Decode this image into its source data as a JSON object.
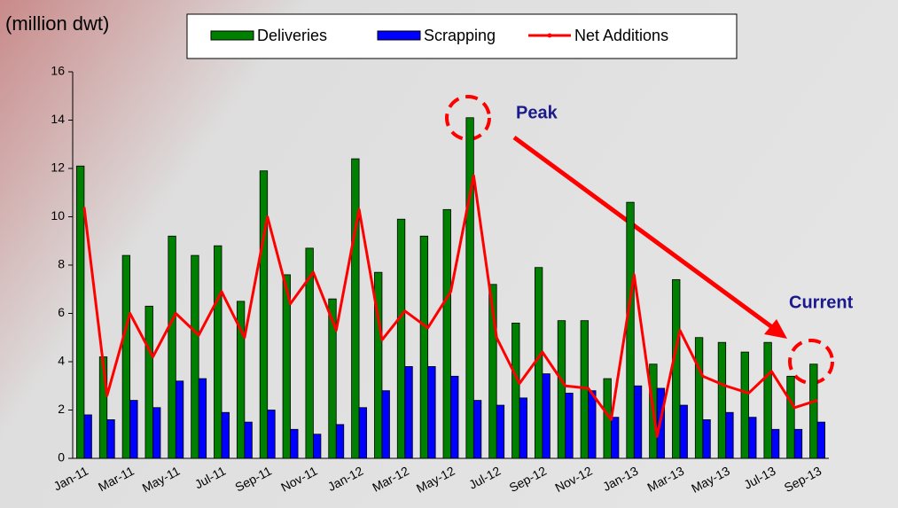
{
  "chart_data": {
    "type": "bar_line",
    "unit_label": "(million dwt)",
    "annotations": [
      "Peak",
      "Current"
    ],
    "categories": [
      "Jan-11",
      null,
      "Mar-11",
      null,
      "May-11",
      null,
      "Jul-11",
      null,
      "Sep-11",
      null,
      "Nov-11",
      null,
      "Jan-12",
      null,
      "Mar-12",
      null,
      "May-12",
      null,
      "Jul-12",
      null,
      "Sep-12",
      null,
      "Nov-12",
      null,
      "Jan-13",
      null,
      "Mar-13",
      null,
      "May-13",
      null,
      "Jul-13",
      null,
      "Sep-13"
    ],
    "series": [
      {
        "name": "Deliveries",
        "type": "bar",
        "color": "#008000",
        "values": [
          12.1,
          4.2,
          8.4,
          6.3,
          9.2,
          8.4,
          8.8,
          6.5,
          11.9,
          7.6,
          8.7,
          6.6,
          12.4,
          7.7,
          9.9,
          9.2,
          10.3,
          14.1,
          7.2,
          5.6,
          7.9,
          5.7,
          5.7,
          3.3,
          10.6,
          3.9,
          7.4,
          5.0,
          4.8,
          4.4,
          4.8,
          3.4,
          3.9
        ]
      },
      {
        "name": "Scrapping",
        "type": "bar",
        "color": "#0000ff",
        "values": [
          1.8,
          1.6,
          2.4,
          2.1,
          3.2,
          3.3,
          1.9,
          1.5,
          2.0,
          1.2,
          1.0,
          1.4,
          2.1,
          2.8,
          3.8,
          3.8,
          3.4,
          2.4,
          2.2,
          2.5,
          3.5,
          2.7,
          2.8,
          1.7,
          3.0,
          2.9,
          2.2,
          1.6,
          1.9,
          1.7,
          1.2,
          1.2,
          1.5
        ]
      },
      {
        "name": "Net Additions",
        "type": "line",
        "color": "#ff0000",
        "values": [
          10.4,
          2.6,
          6.0,
          4.2,
          6.0,
          5.1,
          6.9,
          5.0,
          10.0,
          6.4,
          7.7,
          5.3,
          10.3,
          4.9,
          6.1,
          5.4,
          6.9,
          11.7,
          5.0,
          3.1,
          4.4,
          3.0,
          2.9,
          1.6,
          7.6,
          0.9,
          5.3,
          3.4,
          3.0,
          2.7,
          3.6,
          2.1,
          2.4
        ]
      }
    ],
    "ylim": [
      0,
      16
    ],
    "yticks": [
      0,
      2,
      4,
      6,
      8,
      10,
      12,
      14,
      16
    ]
  }
}
